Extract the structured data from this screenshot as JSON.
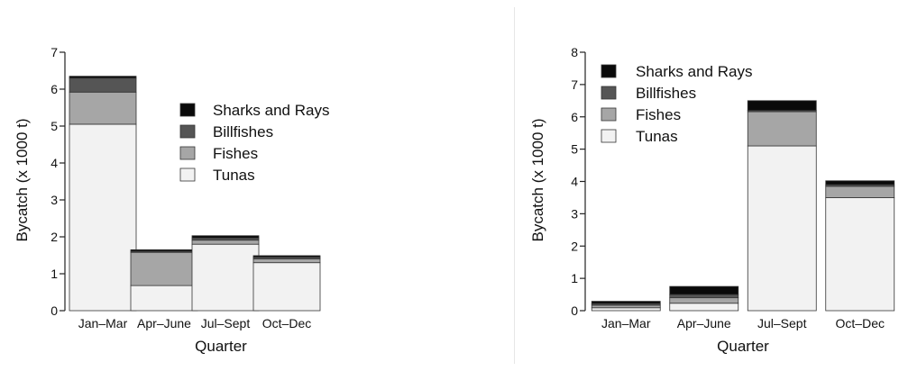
{
  "chart_data": [
    {
      "type": "bar",
      "stacked": true,
      "categories": [
        "Jan–Mar",
        "Apr–June",
        "Jul–Sept",
        "Oct–Dec"
      ],
      "series": [
        {
          "name": "Tunas",
          "values": [
            5.05,
            0.68,
            1.8,
            1.3
          ]
        },
        {
          "name": "Fishes",
          "values": [
            0.87,
            0.9,
            0.11,
            0.1
          ]
        },
        {
          "name": "Billfishes",
          "values": [
            0.38,
            0.03,
            0.06,
            0.05
          ]
        },
        {
          "name": "Sharks and Rays",
          "values": [
            0.05,
            0.04,
            0.06,
            0.04
          ]
        }
      ],
      "legend_order": [
        "Sharks and Rays",
        "Billfishes",
        "Fishes",
        "Tunas"
      ],
      "colors": {
        "Tunas": "#f2f2f2",
        "Fishes": "#a6a6a6",
        "Billfishes": "#555555",
        "Sharks and Rays": "#0a0a0a"
      },
      "xlabel": "Quarter",
      "ylabel": "Bycatch (x 1000 t)",
      "ylim": [
        0,
        7
      ],
      "yticks": [
        "0",
        "1",
        "2",
        "3",
        "4",
        "5",
        "6",
        "7"
      ],
      "legend_position": "center-right",
      "grid": false
    },
    {
      "type": "bar",
      "stacked": true,
      "categories": [
        "Jan–Mar",
        "Apr–June",
        "Jul–Sept",
        "Oct–Dec"
      ],
      "series": [
        {
          "name": "Tunas",
          "values": [
            0.09,
            0.23,
            5.1,
            3.5
          ]
        },
        {
          "name": "Fishes",
          "values": [
            0.08,
            0.17,
            1.06,
            0.35
          ]
        },
        {
          "name": "Billfishes",
          "values": [
            0.05,
            0.1,
            0.04,
            0.05
          ]
        },
        {
          "name": "Sharks and Rays",
          "values": [
            0.07,
            0.25,
            0.3,
            0.12
          ]
        }
      ],
      "legend_order": [
        "Sharks and Rays",
        "Billfishes",
        "Fishes",
        "Tunas"
      ],
      "colors": {
        "Tunas": "#f2f2f2",
        "Fishes": "#a6a6a6",
        "Billfishes": "#555555",
        "Sharks and Rays": "#0a0a0a"
      },
      "xlabel": "Quarter",
      "ylabel": "Bycatch (x 1000 t)",
      "ylim": [
        0,
        8
      ],
      "yticks": [
        "0",
        "1",
        "2",
        "3",
        "4",
        "5",
        "6",
        "7",
        "8"
      ],
      "legend_position": "top-left",
      "grid": false
    }
  ]
}
